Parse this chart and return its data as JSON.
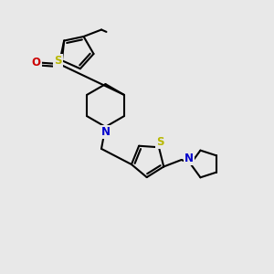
{
  "background_color": "#e8e8e8",
  "atom_colors": {
    "S": "#b8b800",
    "N": "#0000cc",
    "O": "#cc0000",
    "C": "#000000"
  },
  "bond_color": "#000000",
  "bond_width": 1.5,
  "figsize": [
    3.0,
    3.0
  ],
  "dpi": 100,
  "xlim": [
    0,
    10
  ],
  "ylim": [
    0,
    10
  ]
}
